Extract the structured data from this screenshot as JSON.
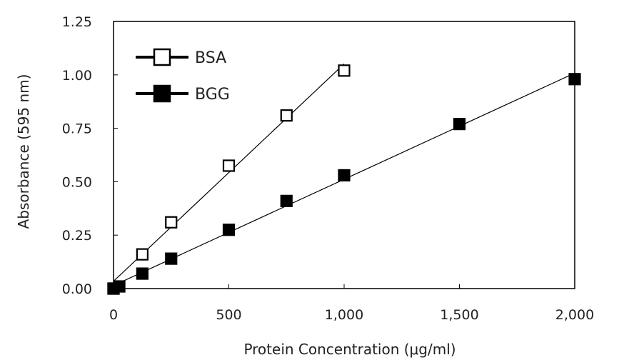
{
  "chart_data": {
    "type": "scatter",
    "title": "",
    "xlabel": "Protein Concentration (μg/ml)",
    "ylabel": "Absorbance (595 nm)",
    "xlim": [
      0,
      2000
    ],
    "ylim": [
      0,
      1.25
    ],
    "xticks": [
      0,
      500,
      1000,
      1500,
      2000
    ],
    "xtick_labels": [
      "0",
      "500",
      "1,000",
      "1,500",
      "2,000"
    ],
    "yticks": [
      0,
      0.25,
      0.5,
      0.75,
      1.0,
      1.25
    ],
    "ytick_labels": [
      "0.00",
      "0.25",
      "0.50",
      "0.75",
      "1.00",
      "1.25"
    ],
    "grid": false,
    "legend_position": "top-left",
    "series": [
      {
        "name": "BSA",
        "marker": "open-square",
        "trendline": true,
        "color": "#000000",
        "x": [
          0,
          125,
          250,
          500,
          750,
          1000
        ],
        "y": [
          0.0,
          0.16,
          0.31,
          0.575,
          0.81,
          1.02
        ]
      },
      {
        "name": "BGG",
        "marker": "filled-square",
        "trendline": true,
        "color": "#000000",
        "x": [
          0,
          25,
          125,
          250,
          500,
          750,
          1000,
          1500,
          2000
        ],
        "y": [
          0.0,
          0.01,
          0.07,
          0.14,
          0.275,
          0.41,
          0.53,
          0.77,
          0.98
        ]
      }
    ]
  }
}
